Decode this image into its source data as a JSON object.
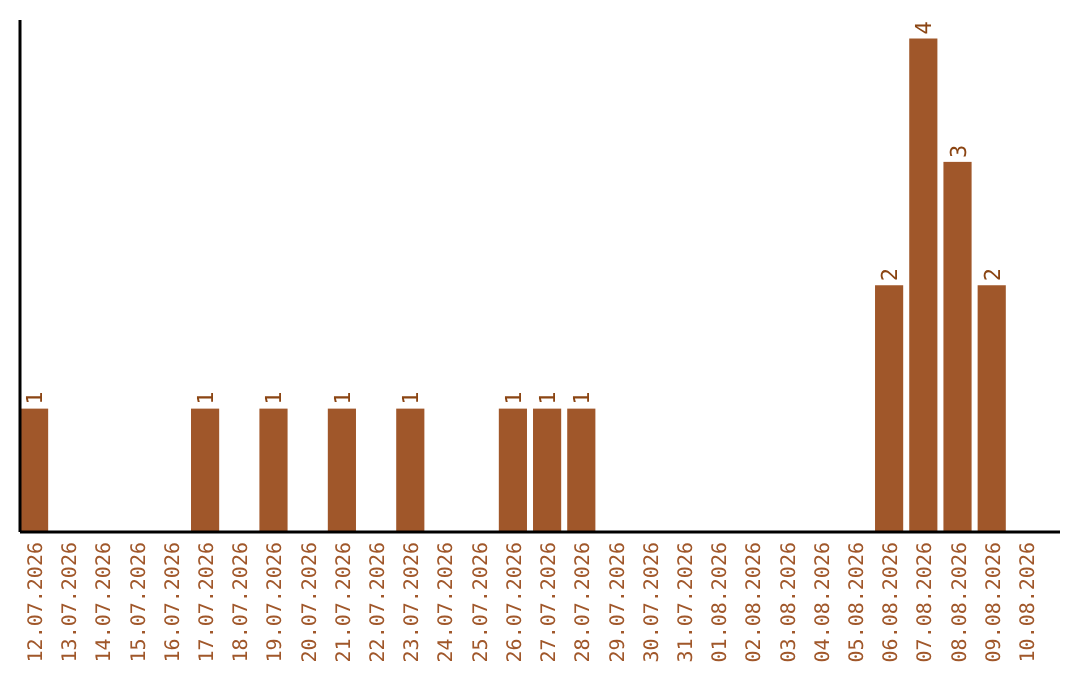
{
  "chart_data": {
    "type": "bar",
    "categories": [
      "12.07.2026",
      "13.07.2026",
      "14.07.2026",
      "15.07.2026",
      "16.07.2026",
      "17.07.2026",
      "18.07.2026",
      "19.07.2026",
      "20.07.2026",
      "21.07.2026",
      "22.07.2026",
      "23.07.2026",
      "24.07.2026",
      "25.07.2026",
      "26.07.2026",
      "27.07.2026",
      "28.07.2026",
      "29.07.2026",
      "30.07.2026",
      "31.07.2026",
      "01.08.2026",
      "02.08.2026",
      "03.08.2026",
      "04.08.2026",
      "05.08.2026",
      "06.08.2026",
      "07.08.2026",
      "08.08.2026",
      "09.08.2026",
      "10.08.2026"
    ],
    "values": [
      1,
      0,
      0,
      0,
      0,
      1,
      0,
      1,
      0,
      1,
      0,
      1,
      0,
      0,
      1,
      1,
      1,
      0,
      0,
      0,
      0,
      0,
      0,
      0,
      0,
      2,
      4,
      3,
      2,
      0
    ],
    "value_labels": [
      "1",
      null,
      null,
      null,
      null,
      "1",
      null,
      "1",
      null,
      "1",
      null,
      "1",
      null,
      null,
      "1",
      "1",
      "1",
      null,
      null,
      null,
      null,
      null,
      null,
      null,
      null,
      "2",
      "4",
      "3",
      "2",
      null
    ],
    "color": "#a0572a",
    "ylim": [
      0,
      4.15
    ],
    "tick_labels": "x"
  }
}
